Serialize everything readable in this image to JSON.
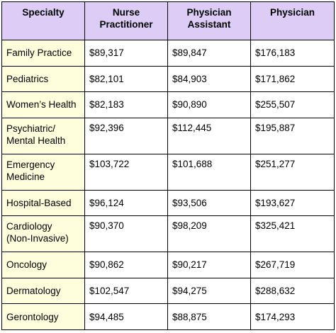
{
  "table": {
    "headers": {
      "specialty": "Specialty",
      "nurse_practitioner": [
        "Nurse",
        "Practitioner"
      ],
      "physician_assistant": [
        "Physician",
        "Assistant"
      ],
      "physician": "Physician"
    },
    "rows": [
      {
        "specialty": [
          "Family Practice"
        ],
        "np": "$89,317",
        "pa": "$89,847",
        "physician": "$176,183"
      },
      {
        "specialty": [
          "Pediatrics"
        ],
        "np": "$82,101",
        "pa": "$84,903",
        "physician": "$171,862"
      },
      {
        "specialty": [
          "Women’s Health"
        ],
        "np": "$82,183",
        "pa": "$90,890",
        "physician": "$255,507"
      },
      {
        "specialty": [
          "Psychiatric/",
          "Mental Health"
        ],
        "np": "$92,396",
        "pa": "$112,445",
        "physician": "$195,887"
      },
      {
        "specialty": [
          "Emergency",
          "Medicine"
        ],
        "np": "$103,722",
        "pa": "$101,688",
        "physician": "$251,277"
      },
      {
        "specialty": [
          "Hospital-Based"
        ],
        "np": "$96,124",
        "pa": "$93,506",
        "physician": "$193,627"
      },
      {
        "specialty": [
          "Cardiology",
          "(Non-Invasive)"
        ],
        "np": "$90,370",
        "pa": "$98,209",
        "physician": "$325,421"
      },
      {
        "specialty": [
          "Oncology"
        ],
        "np": "$90,862",
        "pa": "$90,217",
        "physician": "$267,719"
      },
      {
        "specialty": [
          "Dermatology"
        ],
        "np": "$102,547",
        "pa": "$94,275",
        "physician": "$288,632"
      },
      {
        "specialty": [
          "Gerontology"
        ],
        "np": "$94,485",
        "pa": "$88,875",
        "physician": "$174,293"
      }
    ]
  },
  "colors": {
    "header_background": "#dcccf6",
    "specialty_background": "#fefedc",
    "value_background": "#ffffff",
    "border": "#000000"
  }
}
